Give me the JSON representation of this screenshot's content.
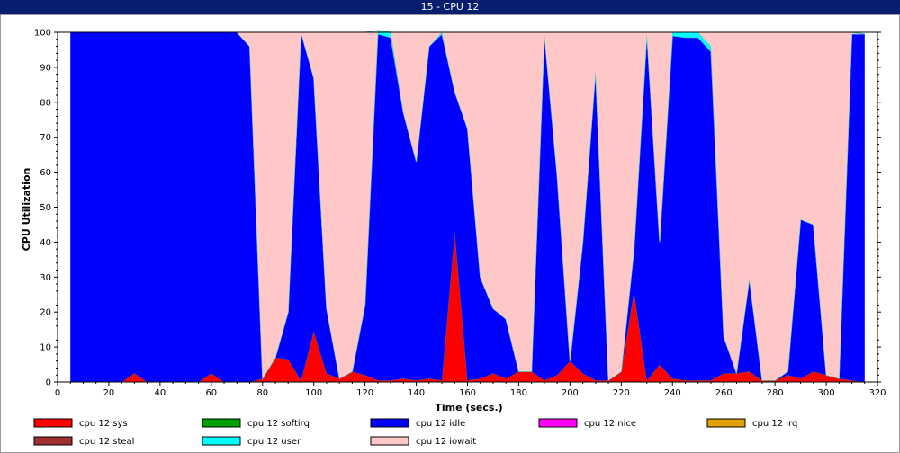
{
  "window": {
    "title": "15 - CPU 12"
  },
  "chart_data": {
    "type": "area",
    "stacked": true,
    "title": "",
    "xlabel": "Time (secs.)",
    "ylabel": "CPU Utilization",
    "xlim": [
      0,
      320
    ],
    "ylim": [
      0,
      100
    ],
    "xticks": [
      0,
      20,
      40,
      60,
      80,
      100,
      120,
      140,
      160,
      180,
      200,
      220,
      240,
      260,
      280,
      300,
      320
    ],
    "yticks": [
      0,
      10,
      20,
      30,
      40,
      50,
      60,
      70,
      80,
      90,
      100
    ],
    "grid": false,
    "legend_position": "bottom",
    "x": [
      5,
      10,
      15,
      20,
      25,
      30,
      35,
      40,
      45,
      50,
      55,
      60,
      65,
      70,
      75,
      80,
      85,
      90,
      95,
      100,
      105,
      110,
      115,
      120,
      125,
      130,
      135,
      140,
      145,
      150,
      155,
      160,
      165,
      170,
      175,
      180,
      185,
      190,
      195,
      200,
      205,
      210,
      215,
      220,
      225,
      230,
      235,
      240,
      245,
      250,
      255,
      260,
      265,
      270,
      275,
      280,
      285,
      290,
      295,
      300,
      305,
      310,
      315
    ],
    "series": [
      {
        "name": "cpu 12 sys",
        "color": "#ff0000",
        "values": [
          0,
          0,
          0,
          0,
          0,
          2.5,
          0,
          0,
          0,
          0,
          0,
          2.5,
          0,
          0,
          0,
          1,
          7,
          6.5,
          0.5,
          14.5,
          2.5,
          1,
          3,
          2,
          0.5,
          0.5,
          1,
          0.5,
          1,
          0.5,
          43,
          0.5,
          1,
          2.5,
          1,
          3,
          3,
          0.5,
          2,
          6,
          2.5,
          0.5,
          0.5,
          3,
          26,
          0.5,
          5,
          1,
          0.5,
          0.5,
          0.5,
          2.5,
          2.5,
          3,
          0.5,
          0.5,
          2,
          1,
          3,
          2,
          1,
          0.5,
          0
        ]
      },
      {
        "name": "cpu 12 softirq",
        "color": "#00a000",
        "values": [
          0,
          0,
          0,
          0,
          0,
          0,
          0,
          0,
          0,
          0,
          0,
          0,
          0,
          0,
          0,
          0,
          0,
          0,
          0,
          0,
          0,
          0,
          0,
          0,
          0,
          0,
          0,
          0,
          0,
          0,
          0,
          0,
          0,
          0,
          0,
          0,
          0,
          0,
          0,
          0,
          0,
          0,
          0,
          0,
          0,
          0,
          0,
          0,
          0,
          0,
          0,
          0,
          0,
          0,
          0,
          0,
          0,
          0,
          0,
          0,
          0,
          0,
          0
        ]
      },
      {
        "name": "cpu 12 idle",
        "color": "#0000ff",
        "values": [
          100,
          100,
          100,
          100,
          100,
          97.5,
          100,
          100,
          100,
          100,
          100,
          97.5,
          100,
          100,
          96,
          0,
          0,
          13.5,
          99.5,
          72.5,
          18.5,
          0,
          0,
          20,
          99,
          98,
          76,
          62.5,
          95,
          99,
          40,
          72,
          29,
          18.5,
          17,
          0,
          0,
          99,
          57,
          0,
          37.5,
          88.5,
          0,
          0,
          12,
          99,
          35,
          98,
          98,
          98,
          94,
          10.5,
          0,
          26.5,
          0,
          0,
          1,
          45.5,
          42,
          0,
          0,
          99,
          99.5
        ]
      },
      {
        "name": "cpu 12 nice",
        "color": "#ff00ff",
        "values": [
          0,
          0,
          0,
          0,
          0,
          0,
          0,
          0,
          0,
          0,
          0,
          0,
          0,
          0,
          0,
          0,
          0,
          0,
          0,
          0,
          0,
          0,
          0,
          0,
          0,
          0,
          0,
          0,
          0,
          0,
          0,
          0,
          0,
          0,
          0,
          0,
          0,
          0,
          0,
          0,
          0,
          0,
          0,
          0,
          0,
          0,
          0,
          0,
          0,
          0,
          0,
          0,
          0,
          0,
          0,
          0,
          0,
          0,
          0,
          0,
          0,
          0,
          0
        ]
      },
      {
        "name": "cpu 12 irq",
        "color": "#e0a000",
        "values": [
          0,
          0,
          0,
          0,
          0,
          0,
          0,
          0,
          0,
          0,
          0,
          0,
          0,
          0,
          0,
          0,
          0,
          0,
          0,
          0,
          0,
          0,
          0,
          0,
          0,
          0,
          0,
          0,
          0,
          0,
          0,
          0,
          0,
          0,
          0,
          0,
          0,
          0,
          0,
          0,
          0,
          0,
          0,
          0,
          0,
          0,
          0,
          0,
          0,
          0,
          0,
          0,
          0,
          0,
          0,
          0,
          0,
          0,
          0,
          0,
          0,
          0,
          0
        ]
      },
      {
        "name": "cpu 12 steal",
        "color": "#a03030",
        "values": [
          0,
          0,
          0,
          0,
          0,
          0,
          0,
          0,
          0,
          0,
          0,
          0,
          0,
          0,
          0,
          0,
          0,
          0,
          0,
          0,
          0,
          0,
          0,
          0,
          0,
          0,
          0,
          0,
          0,
          0,
          0,
          0,
          0,
          0,
          0,
          0,
          0,
          0,
          0,
          0,
          0,
          0,
          0,
          0,
          0,
          0,
          0,
          0,
          0,
          0,
          0,
          0,
          0,
          0,
          0,
          0,
          0,
          0,
          0,
          0,
          0,
          0,
          0
        ]
      },
      {
        "name": "cpu 12 user",
        "color": "#00ffff",
        "values": [
          0,
          0,
          0,
          0,
          0,
          0,
          0,
          0,
          0,
          0,
          0,
          0,
          0,
          0,
          0,
          0,
          0,
          0,
          0,
          0,
          0,
          0,
          0,
          0,
          1,
          1.5,
          0,
          0,
          0,
          0.5,
          0,
          0,
          0,
          0,
          0,
          0,
          0,
          0,
          0,
          0,
          0,
          0,
          0,
          0,
          0,
          0,
          0,
          1,
          1.5,
          1.5,
          1.5,
          0,
          0,
          0,
          0,
          0,
          0,
          0,
          0,
          0,
          0,
          0,
          0
        ]
      },
      {
        "name": "cpu 12 iowait",
        "color": "#ffc8c8",
        "values": [
          0,
          0,
          0,
          0,
          0,
          0,
          0,
          0,
          0,
          0,
          0,
          0,
          0,
          0,
          4,
          99,
          93,
          80,
          0,
          13,
          79,
          99,
          97,
          78,
          0,
          0,
          23,
          37,
          4,
          0,
          17,
          27.5,
          70,
          79,
          82,
          97,
          97,
          0.5,
          41,
          94,
          60,
          11,
          99.5,
          97,
          62,
          0.5,
          60,
          0,
          0,
          0,
          4,
          87,
          97.5,
          70.5,
          99.5,
          99.5,
          97,
          53.5,
          55,
          98,
          99,
          0.5,
          0
        ]
      }
    ]
  }
}
